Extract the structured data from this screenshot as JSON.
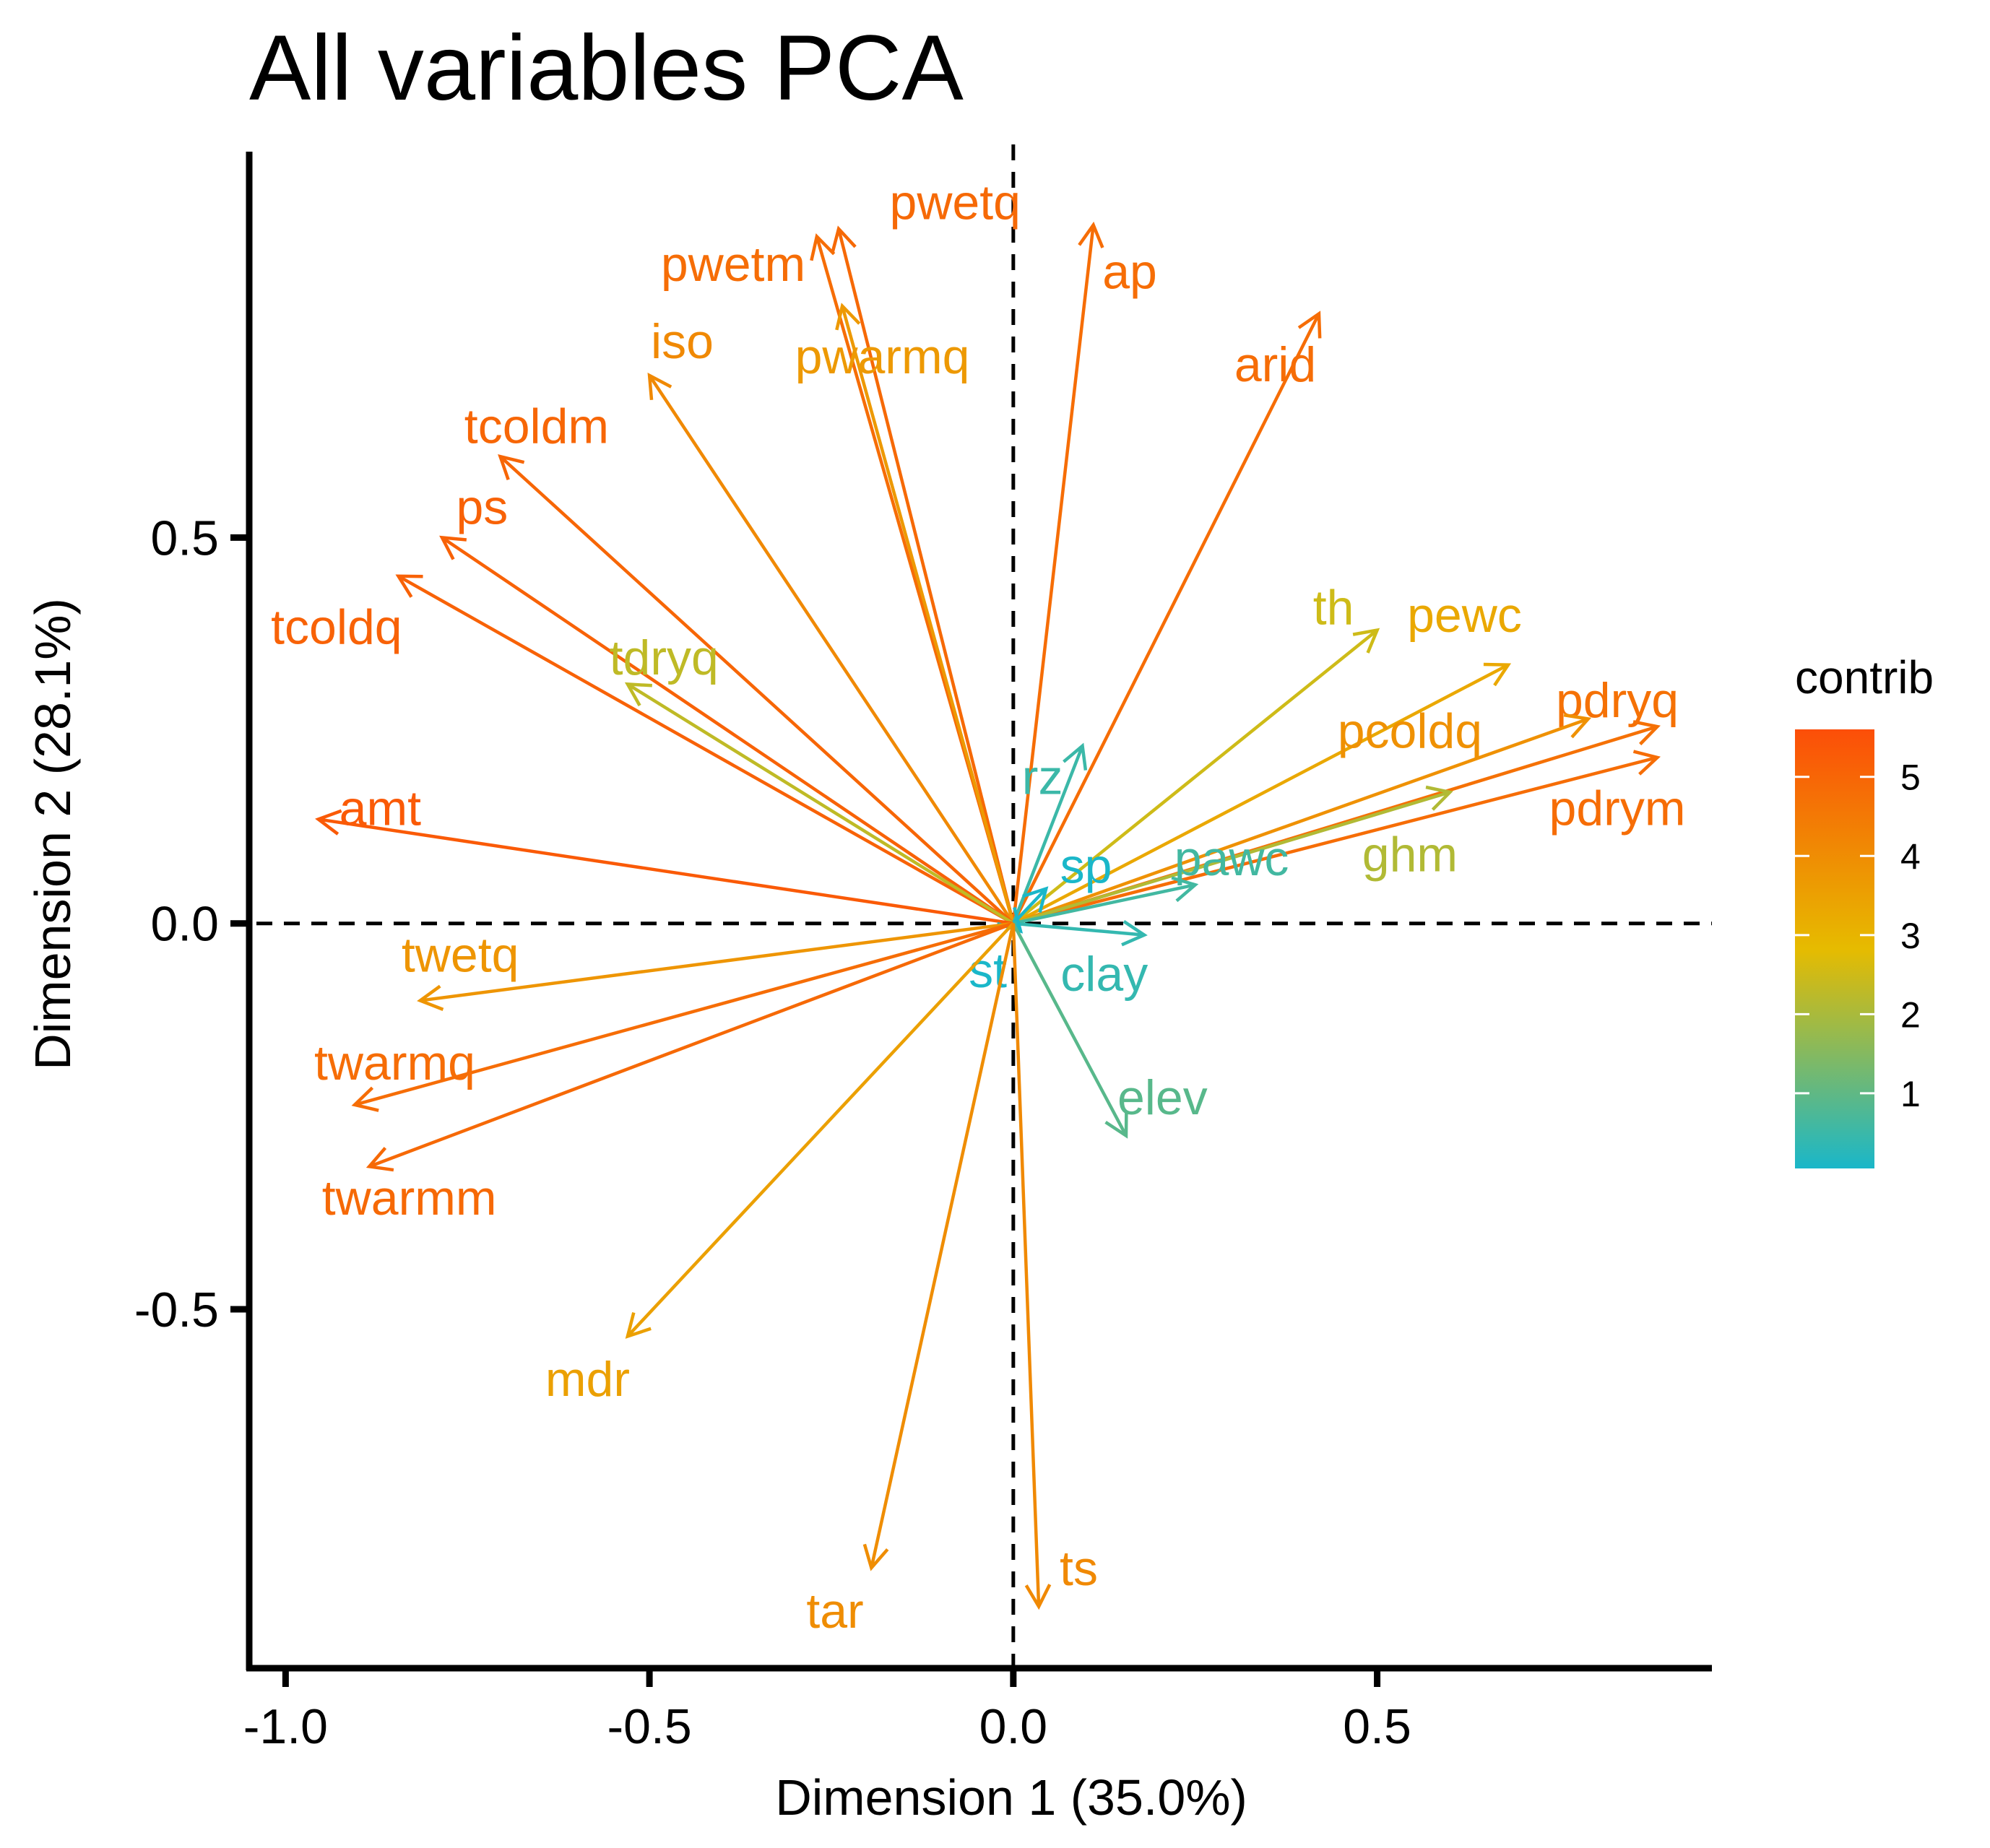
{
  "chart_data": {
    "type": "scatter",
    "title": "All variables PCA",
    "xlabel": "Dimension 1 (35.0%)",
    "ylabel": "Dimension 2 (28.1%)",
    "xlim": [
      -1.05,
      0.96
    ],
    "ylim": [
      -0.965,
      1.0
    ],
    "xticks": [
      -1.0,
      -0.5,
      0.0,
      0.5
    ],
    "xtick_labels": [
      "-1.0",
      "-0.5",
      "0.0",
      "0.5"
    ],
    "yticks": [
      -0.5,
      0.0,
      0.5
    ],
    "ytick_labels": [
      "-0.5",
      "0.0",
      "0.5"
    ],
    "legend": {
      "title": "contrib",
      "placement": "right",
      "range": [
        0.05,
        5.6
      ],
      "ticks": [
        1,
        2,
        3,
        4,
        5
      ],
      "tick_labels": [
        "1",
        "2",
        "3",
        "4",
        "5"
      ],
      "colors": [
        "#1ab7c9",
        "#e6bb00",
        "#fc4e08"
      ]
    },
    "variables": [
      {
        "name": "pwetq",
        "x": -0.24,
        "y": 0.9,
        "contrib": 4.9,
        "lx": -0.08,
        "ly": 0.935
      },
      {
        "name": "pwetm",
        "x": -0.27,
        "y": 0.89,
        "contrib": 4.8,
        "lx": -0.385,
        "ly": 0.855
      },
      {
        "name": "ap",
        "x": 0.11,
        "y": 0.905,
        "contrib": 4.8,
        "lx": 0.16,
        "ly": 0.845
      },
      {
        "name": "iso",
        "x": -0.5,
        "y": 0.71,
        "contrib": 4.1,
        "lx": -0.455,
        "ly": 0.755
      },
      {
        "name": "pwarmq",
        "x": -0.235,
        "y": 0.8,
        "contrib": 3.7,
        "lx": -0.18,
        "ly": 0.735
      },
      {
        "name": "arid",
        "x": 0.42,
        "y": 0.79,
        "contrib": 4.8,
        "lx": 0.36,
        "ly": 0.725
      },
      {
        "name": "tcoldm",
        "x": -0.705,
        "y": 0.605,
        "contrib": 5.0,
        "lx": -0.655,
        "ly": 0.645
      },
      {
        "name": "ps",
        "x": -0.785,
        "y": 0.5,
        "contrib": 5.1,
        "lx": -0.73,
        "ly": 0.54
      },
      {
        "name": "tcoldq",
        "x": -0.845,
        "y": 0.45,
        "contrib": 5.1,
        "lx": -0.93,
        "ly": 0.385
      },
      {
        "name": "tdryq",
        "x": -0.53,
        "y": 0.31,
        "contrib": 2.3,
        "lx": -0.48,
        "ly": 0.345
      },
      {
        "name": "th",
        "x": 0.5,
        "y": 0.38,
        "contrib": 2.5,
        "lx": 0.44,
        "ly": 0.41
      },
      {
        "name": "pewc",
        "x": 0.68,
        "y": 0.335,
        "contrib": 3.3,
        "lx": 0.62,
        "ly": 0.4
      },
      {
        "name": "pdryq",
        "x": 0.885,
        "y": 0.255,
        "contrib": 4.7,
        "lx": 0.83,
        "ly": 0.29
      },
      {
        "name": "pcoldq",
        "x": 0.79,
        "y": 0.265,
        "contrib": 3.9,
        "lx": 0.545,
        "ly": 0.25
      },
      {
        "name": "pdrym",
        "x": 0.885,
        "y": 0.215,
        "contrib": 4.8,
        "lx": 0.83,
        "ly": 0.15
      },
      {
        "name": "ghm",
        "x": 0.6,
        "y": 0.17,
        "contrib": 2.1,
        "lx": 0.545,
        "ly": 0.09
      },
      {
        "name": "amt",
        "x": -0.955,
        "y": 0.135,
        "contrib": 5.3,
        "lx": -0.87,
        "ly": 0.15
      },
      {
        "name": "rz",
        "x": 0.095,
        "y": 0.23,
        "contrib": 0.5,
        "lx": 0.04,
        "ly": 0.19
      },
      {
        "name": "sp",
        "x": 0.045,
        "y": 0.045,
        "contrib": 0.05,
        "lx": 0.1,
        "ly": 0.075
      },
      {
        "name": "pawc",
        "x": 0.25,
        "y": 0.05,
        "contrib": 0.6,
        "lx": 0.3,
        "ly": 0.085
      },
      {
        "name": "clay",
        "x": 0.18,
        "y": -0.015,
        "contrib": 0.4,
        "lx": 0.125,
        "ly": -0.065
      },
      {
        "name": "st",
        "x": 0.01,
        "y": -0.01,
        "contrib": 0.05,
        "lx": -0.035,
        "ly": -0.06
      },
      {
        "name": "twetq",
        "x": -0.815,
        "y": -0.1,
        "contrib": 3.8,
        "lx": -0.76,
        "ly": -0.04
      },
      {
        "name": "twarmq",
        "x": -0.905,
        "y": -0.235,
        "contrib": 4.8,
        "lx": -0.85,
        "ly": -0.18
      },
      {
        "name": "twarmm",
        "x": -0.885,
        "y": -0.315,
        "contrib": 4.9,
        "lx": -0.83,
        "ly": -0.355
      },
      {
        "name": "elev",
        "x": 0.155,
        "y": -0.275,
        "contrib": 0.9,
        "lx": 0.205,
        "ly": -0.225
      },
      {
        "name": "mdr",
        "x": -0.53,
        "y": -0.535,
        "contrib": 3.5,
        "lx": -0.585,
        "ly": -0.59
      },
      {
        "name": "tar",
        "x": -0.195,
        "y": -0.835,
        "contrib": 4.0,
        "lx": -0.245,
        "ly": -0.89
      },
      {
        "name": "ts",
        "x": 0.035,
        "y": -0.885,
        "contrib": 4.1,
        "lx": 0.09,
        "ly": -0.835
      }
    ]
  }
}
